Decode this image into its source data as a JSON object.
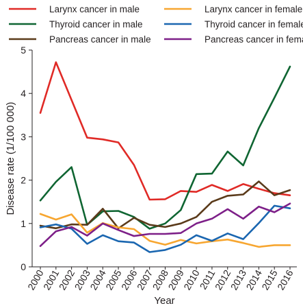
{
  "chart_data": {
    "type": "line",
    "xlabel": "Year",
    "ylabel": "Disease rate (1/100 000)",
    "ylim": [
      0,
      5
    ],
    "yticks": [
      "0",
      "1",
      "2",
      "3",
      "4",
      "5"
    ],
    "grid": false,
    "legend_position": "top",
    "x": [
      "2000",
      "2001",
      "2002",
      "2003",
      "2004",
      "2005",
      "2006",
      "2007",
      "2008",
      "2009",
      "2010",
      "2011",
      "2012",
      "2013",
      "2014",
      "2015",
      "2016"
    ],
    "series": [
      {
        "name": "Larynx cancer in male",
        "color": "#e02a26",
        "values": [
          3.55,
          4.72,
          3.85,
          2.98,
          2.94,
          2.87,
          2.35,
          1.55,
          1.56,
          1.75,
          1.73,
          1.89,
          1.75,
          1.91,
          1.8,
          1.7,
          1.65
        ]
      },
      {
        "name": "Thyroid cancer in male",
        "color": "#0f6532",
        "values": [
          1.53,
          1.96,
          2.3,
          0.97,
          1.28,
          1.29,
          1.15,
          0.88,
          1.0,
          1.31,
          2.14,
          2.15,
          2.66,
          2.34,
          3.2,
          3.9,
          4.62
        ]
      },
      {
        "name": "Pancreas cancer in male",
        "color": "#5a3a1a",
        "values": [
          0.95,
          0.89,
          0.98,
          0.97,
          1.34,
          0.89,
          1.13,
          0.97,
          0.92,
          1.0,
          1.15,
          1.5,
          1.64,
          1.67,
          1.97,
          1.65,
          1.77
        ]
      },
      {
        "name": "Larynx cancer in female",
        "color": "#f7a630",
        "values": [
          1.22,
          1.09,
          1.21,
          0.79,
          1.01,
          0.91,
          0.87,
          0.6,
          0.51,
          0.62,
          0.54,
          0.59,
          0.63,
          0.55,
          0.46,
          0.5,
          0.5
        ]
      },
      {
        "name": "Thyroid cancer in female",
        "color": "#1a66b0",
        "values": [
          0.91,
          0.98,
          0.88,
          0.53,
          0.73,
          0.59,
          0.56,
          0.34,
          0.39,
          0.51,
          0.73,
          0.6,
          0.77,
          0.64,
          1.01,
          1.41,
          1.35
        ]
      },
      {
        "name": "Pancreas cancer in female",
        "color": "#7d1f88",
        "values": [
          0.48,
          0.82,
          0.92,
          0.72,
          1.0,
          0.85,
          0.71,
          0.76,
          0.76,
          0.78,
          1.0,
          1.11,
          1.33,
          1.11,
          1.39,
          1.26,
          1.46
        ]
      }
    ]
  }
}
